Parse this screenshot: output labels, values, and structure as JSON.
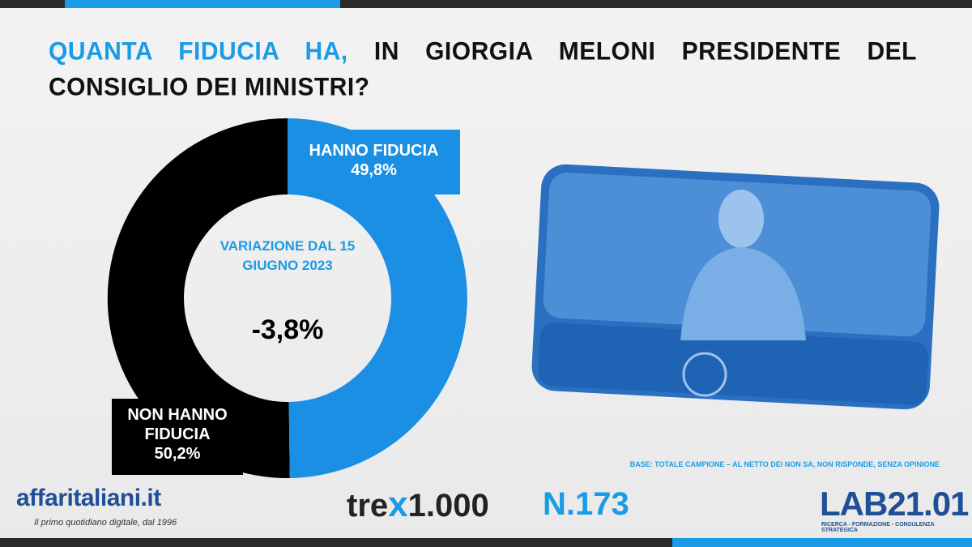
{
  "chart_data": {
    "type": "pie",
    "donut": true,
    "title_highlight": "QUANTA FIDUCIA HA,",
    "title": "IN GIORGIA MELONI PRESIDENTE DEL CONSIGLIO DEI MINISTRI?",
    "categories": [
      "HANNO FIDUCIA",
      "NON HANNO FIDUCIA"
    ],
    "values": [
      49.8,
      50.2
    ],
    "value_labels": [
      "49,8%",
      "50,2%"
    ],
    "colors": [
      "#1a8fe3",
      "#000000"
    ],
    "center_annotation": "VARIAZIONE DAL 15 GIUGNO 2023",
    "center_value": "-3,8%",
    "note": "BASE: TOTALE CAMPIONE – AL NETTO DEI NON SA, NON RISPONDE, SENZA OPINIONE"
  },
  "footer": {
    "brand": "affaritaliani.it",
    "tagline": "Il primo quotidiano digitale, dal 1996",
    "survey_prefix": "tre",
    "survey_mid": "1.000",
    "issue": "N.173",
    "lab": "LAB21.01",
    "lab_tagline": "RICERCA - FORMAZIONE - CONSULENZA STRATEGICA"
  }
}
